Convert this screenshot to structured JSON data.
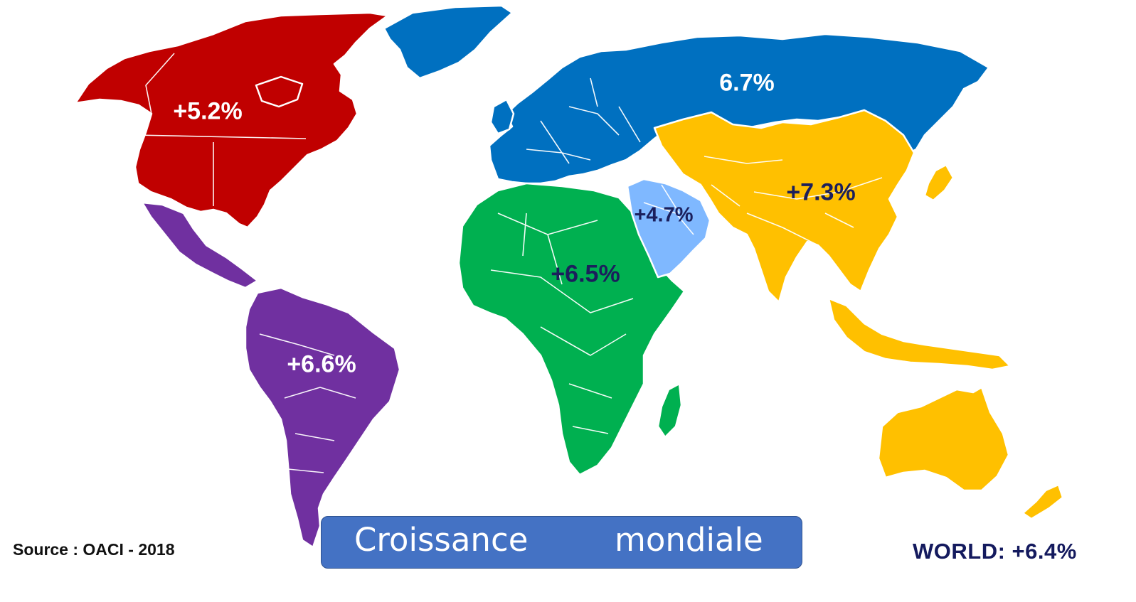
{
  "map": {
    "regions": [
      {
        "id": "north-america",
        "color": "#c00000",
        "label": "+5.2%"
      },
      {
        "id": "latin-america",
        "color": "#7030a0",
        "label": "+6.6%"
      },
      {
        "id": "europe",
        "color": "#0070c0",
        "label": "6.7%"
      },
      {
        "id": "africa",
        "color": "#00b050",
        "label": "+6.5%"
      },
      {
        "id": "middle-east",
        "color": "#7fb8ff",
        "label": "+4.7%"
      },
      {
        "id": "asia-pacific",
        "color": "#ffc000",
        "label": "+7.3%"
      }
    ]
  },
  "source": "Source : OACI - 2018",
  "world_label": "WORLD: +6.4%",
  "banner": {
    "word1": "Croissance",
    "word2": "mondiale"
  }
}
